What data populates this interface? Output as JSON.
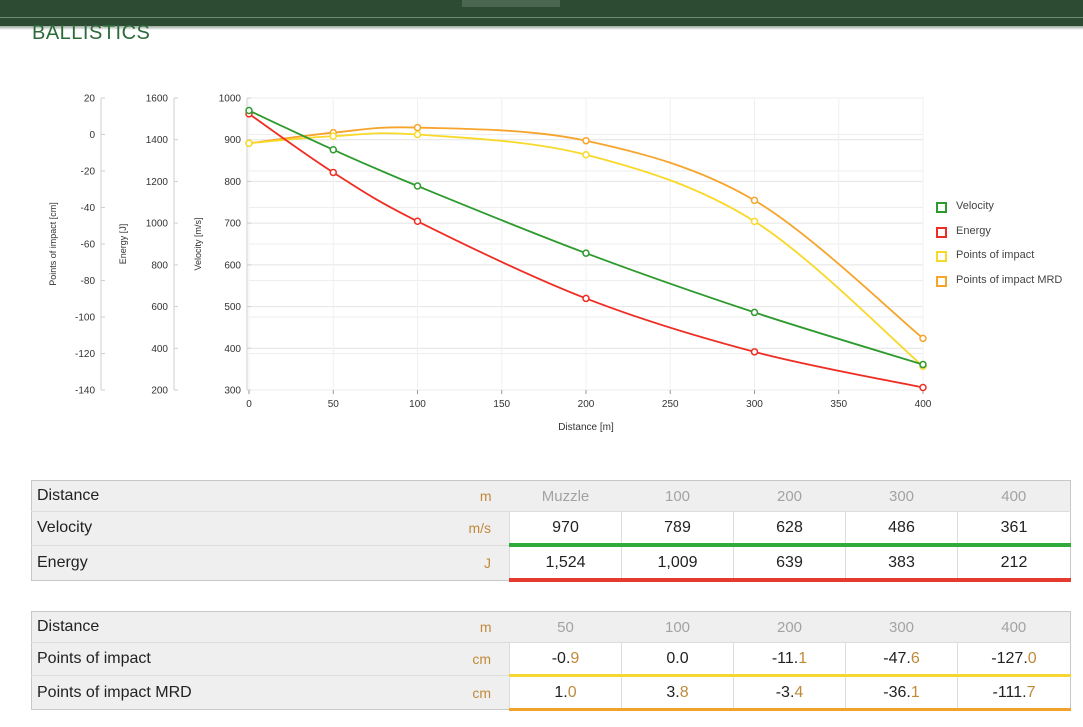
{
  "page": {
    "section_title": "BALLISTICS"
  },
  "chart_data": {
    "type": "line",
    "xlabel": "Distance [m]",
    "x_ticks": [
      "0",
      "50",
      "100",
      "150",
      "200",
      "250",
      "300",
      "350",
      "400"
    ],
    "xlim": [
      0,
      400
    ],
    "grid": true,
    "legend_position": "right",
    "axes": [
      {
        "id": "poi",
        "label": "Points of impact [cm]",
        "range": [
          -140,
          20
        ],
        "ticks": [
          "20",
          "0",
          "-20",
          "-40",
          "-60",
          "-80",
          "-100",
          "-120",
          "-140"
        ]
      },
      {
        "id": "energy",
        "label": "Energy [J]",
        "range": [
          200,
          1600
        ],
        "ticks": [
          "1600",
          "1400",
          "1200",
          "1000",
          "800",
          "600",
          "400",
          "200"
        ]
      },
      {
        "id": "velocity",
        "label": "Velocity [m/s]",
        "range": [
          300,
          1000
        ],
        "ticks": [
          "1000",
          "900",
          "800",
          "700",
          "600",
          "500",
          "400",
          "300"
        ]
      }
    ],
    "series": [
      {
        "name": "Velocity",
        "axis": "velocity",
        "color": "#2e9a2e",
        "x": [
          0,
          50,
          100,
          200,
          300,
          400
        ],
        "y": [
          970,
          876,
          789,
          628,
          486,
          361
        ]
      },
      {
        "name": "Energy",
        "axis": "energy",
        "color": "#ee2e24",
        "x": [
          0,
          50,
          100,
          200,
          300,
          400
        ],
        "y": [
          1524,
          1243,
          1009,
          639,
          383,
          212
        ]
      },
      {
        "name": "Points of impact",
        "axis": "poi",
        "color": "#f8d92a",
        "x": [
          0,
          50,
          100,
          200,
          300,
          400
        ],
        "y": [
          -4.8,
          -0.9,
          0.0,
          -11.1,
          -47.6,
          -127.0
        ]
      },
      {
        "name": "Points of impact MRD",
        "axis": "poi",
        "color": "#f7a42c",
        "x": [
          0,
          50,
          100,
          200,
          300,
          400
        ],
        "y": [
          -4.8,
          1.0,
          3.8,
          -3.4,
          -36.1,
          -111.7
        ]
      }
    ]
  },
  "table1": {
    "header": {
      "label": "Distance",
      "unit": "m",
      "values": [
        "Muzzle",
        "100",
        "200",
        "300",
        "400"
      ]
    },
    "rows": [
      {
        "label": "Velocity",
        "unit": "m/s",
        "values": [
          "970",
          "789",
          "628",
          "486",
          "361"
        ],
        "color": "#2eab3a"
      },
      {
        "label": "Energy",
        "unit": "J",
        "values": [
          "1,524",
          "1,009",
          "639",
          "383",
          "212"
        ],
        "color": "#e53a2e"
      }
    ]
  },
  "table2": {
    "header": {
      "label": "Distance",
      "unit": "m",
      "values": [
        "50",
        "100",
        "200",
        "300",
        "400"
      ]
    },
    "rows": [
      {
        "label": "Points of impact",
        "unit": "cm",
        "cells": [
          {
            "int": "-0",
            "dec": "9"
          },
          {
            "int": "0",
            "dec": "0"
          },
          {
            "int": "-11",
            "dec": "1"
          },
          {
            "int": "-47",
            "dec": "6"
          },
          {
            "int": "-127",
            "dec": "0"
          }
        ],
        "color": "#f6d732"
      },
      {
        "label": "Points of impact MRD",
        "unit": "cm",
        "cells": [
          {
            "int": "1",
            "dec": "0"
          },
          {
            "int": "3",
            "dec": "8"
          },
          {
            "int": "-3",
            "dec": "4"
          },
          {
            "int": "-36",
            "dec": "1"
          },
          {
            "int": "-111",
            "dec": "7"
          }
        ],
        "color": "#f0a22a"
      }
    ]
  }
}
